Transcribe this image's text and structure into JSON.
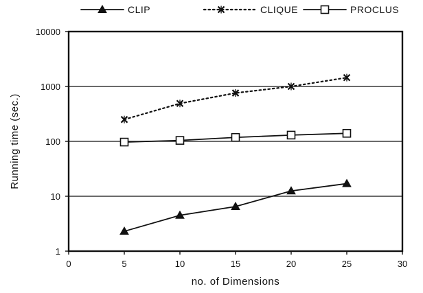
{
  "chart_data": {
    "type": "line",
    "title": "",
    "xlabel": "no. of Dimensions",
    "ylabel": "Running time (sec.)",
    "xlim": [
      0,
      30
    ],
    "ylim": [
      1,
      10000
    ],
    "yscale": "log",
    "x_ticks": [
      "0",
      "5",
      "10",
      "15",
      "20",
      "25",
      "30"
    ],
    "y_ticks": [
      "1",
      "10",
      "100",
      "1000",
      "10000"
    ],
    "grid": "horizontal",
    "legend_position": "top",
    "x": [
      5,
      10,
      15,
      20,
      25
    ],
    "series": [
      {
        "name": "CLIP",
        "marker": "triangle",
        "line": "solid",
        "values": [
          2.3,
          4.5,
          6.5,
          12.5,
          17
        ]
      },
      {
        "name": "CLIQUE",
        "marker": "x",
        "line": "dotted",
        "values": [
          250,
          490,
          760,
          1000,
          1450
        ]
      },
      {
        "name": "PROCLUS",
        "marker": "square",
        "line": "solid",
        "values": [
          97,
          104,
          118,
          130,
          140
        ]
      }
    ]
  }
}
